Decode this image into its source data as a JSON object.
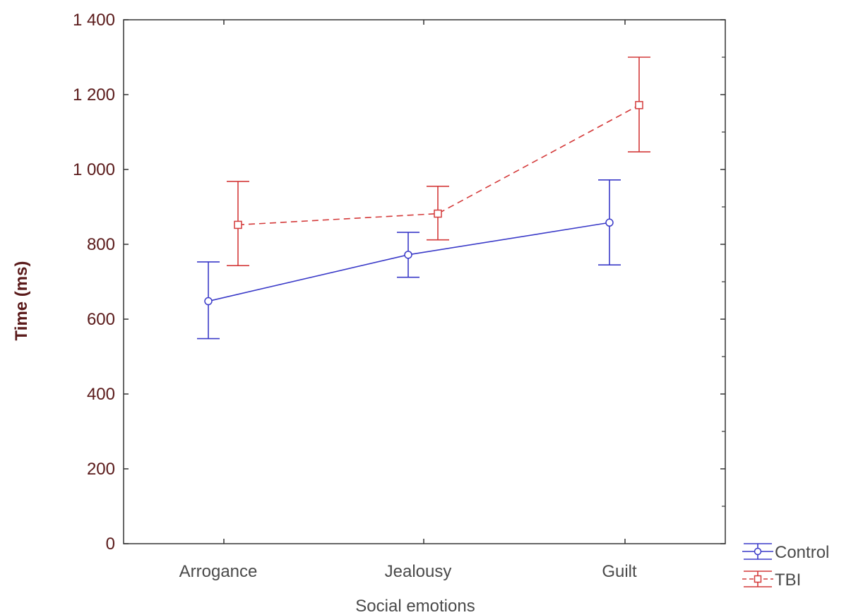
{
  "chart_data": {
    "type": "line",
    "title": "",
    "xlabel": "Social emotions",
    "ylabel": "Time (ms)",
    "ylim": [
      0,
      1400
    ],
    "yticks": [
      0,
      200,
      400,
      600,
      800,
      1000,
      1200,
      1400
    ],
    "ytick_labels": [
      "0",
      "200",
      "400",
      "600",
      "800",
      "1 000",
      "1 200",
      "1 400"
    ],
    "categories": [
      "Arrogance",
      "Jealousy",
      "Guilt"
    ],
    "grid": false,
    "legend_position": "bottom-right outside",
    "series": [
      {
        "name": "Control",
        "color": "#3a3ac8",
        "line_style": "solid",
        "marker": "circle",
        "values": [
          648,
          772,
          858
        ],
        "error_low": [
          548,
          712,
          745
        ],
        "error_high": [
          753,
          832,
          972
        ]
      },
      {
        "name": "TBI",
        "color": "#d43a3a",
        "line_style": "dashed",
        "marker": "square",
        "values": [
          852,
          882,
          1172
        ],
        "error_low": [
          743,
          812,
          1047
        ],
        "error_high": [
          968,
          955,
          1300
        ]
      }
    ]
  }
}
